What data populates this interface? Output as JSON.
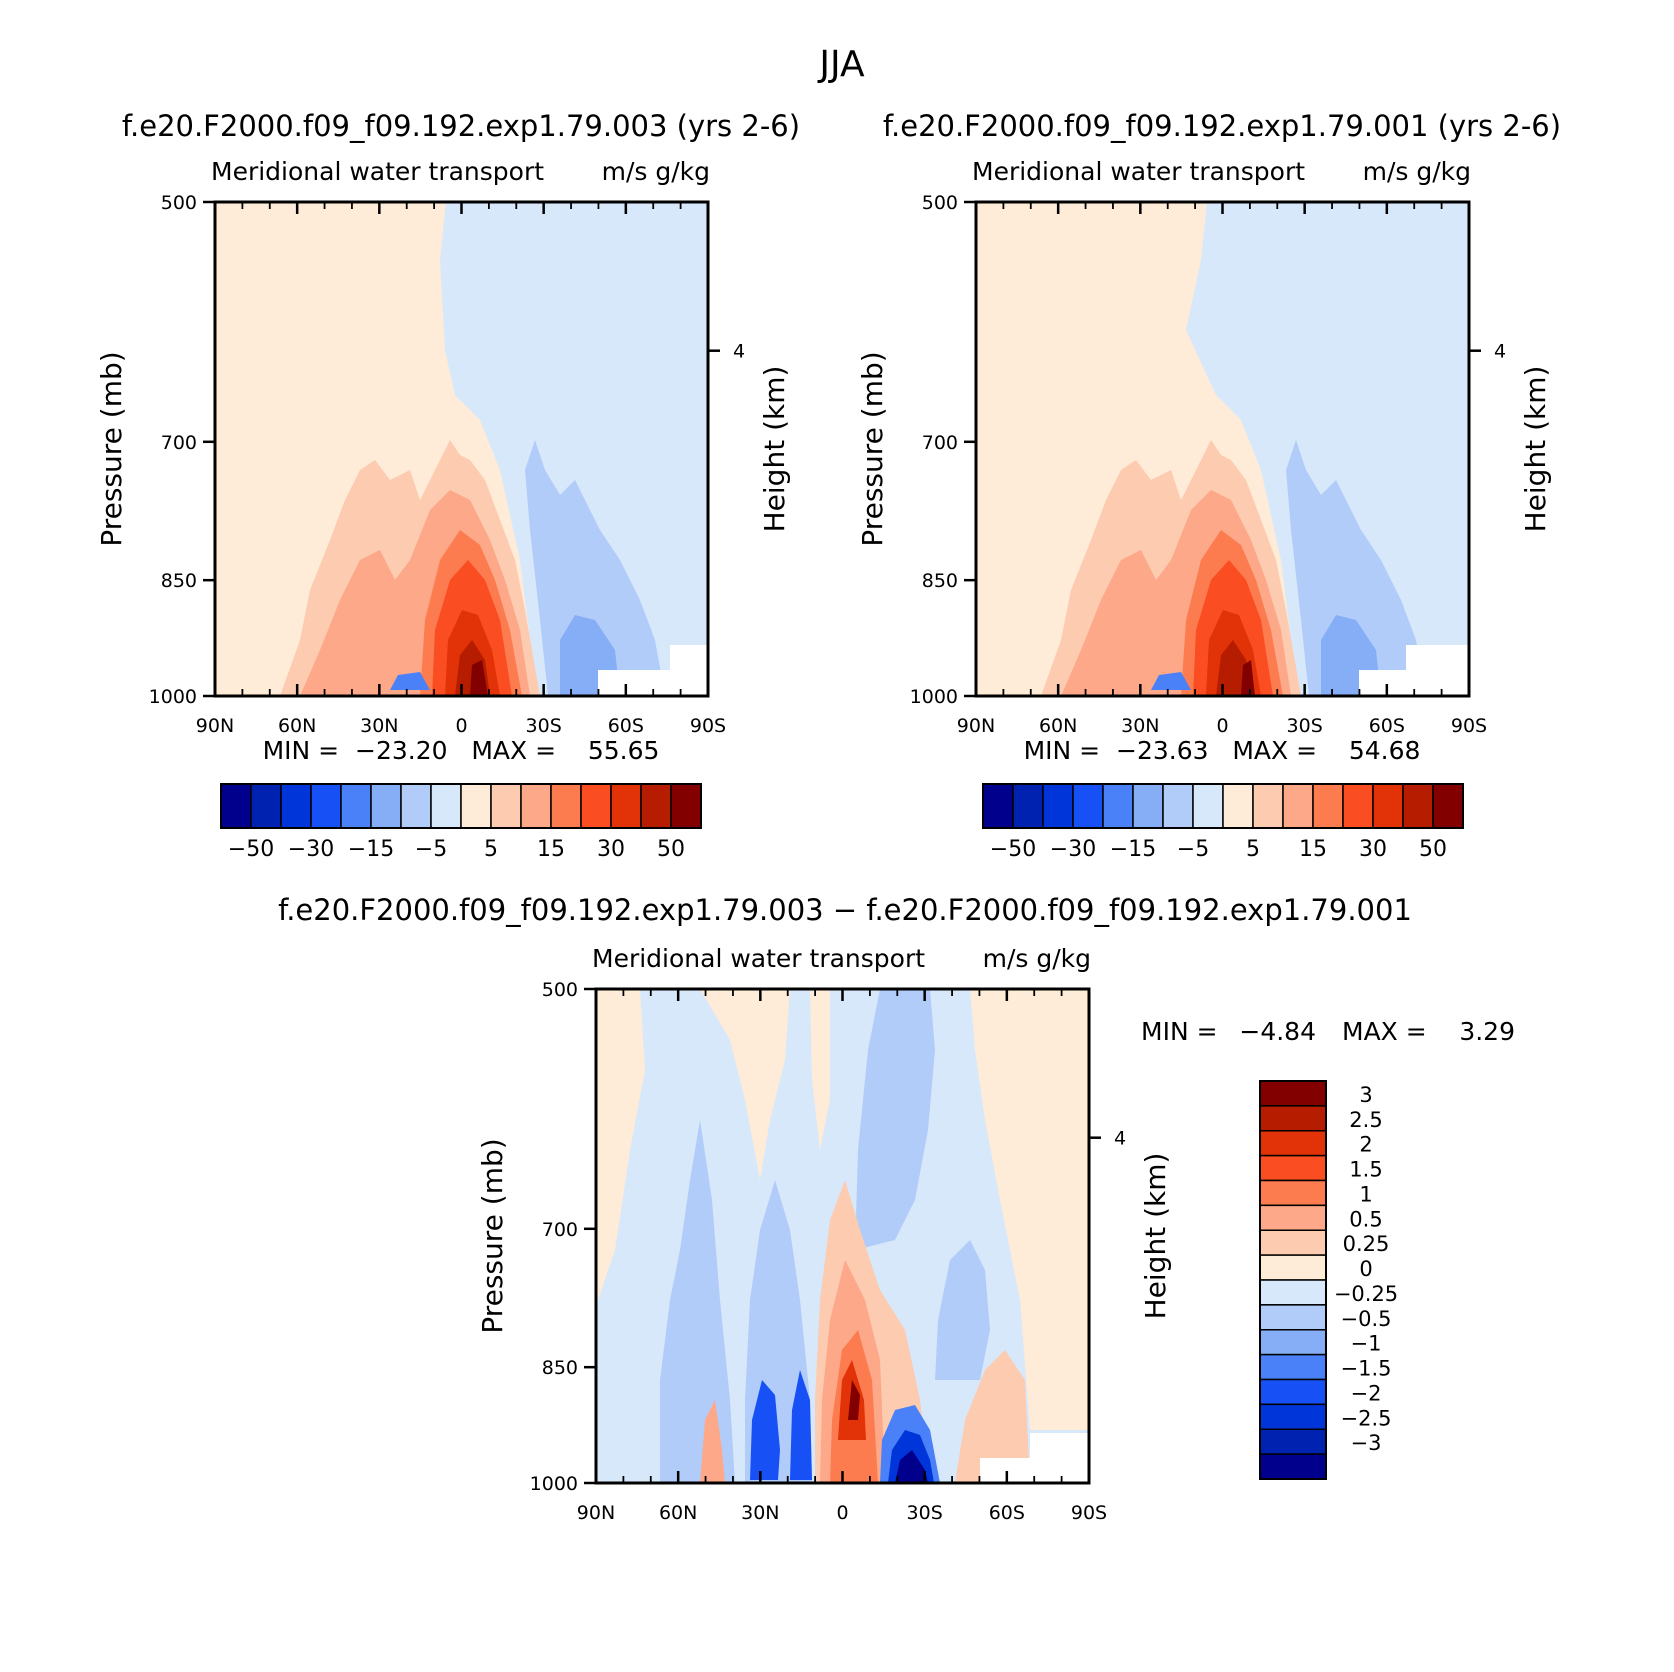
{
  "figure": {
    "title": "JJA"
  },
  "colors": {
    "scale": [
      "#00008c",
      "#0022b0",
      "#0035da",
      "#1750f4",
      "#4a80f8",
      "#86aef6",
      "#b2ccfa",
      "#d7e8fb",
      "#feebd8",
      "#fdcbb0",
      "#fca889",
      "#fc7c50",
      "#fb4d22",
      "#e13208",
      "#b51c00",
      "#820000"
    ]
  },
  "chart_data": [
    {
      "type": "heatmap",
      "id": "panel_a",
      "title": "f.e20.F2000.f09_f09.192.exp1.79.003 (yrs 2-6)",
      "subtitle_left": "Meridional water transport",
      "subtitle_right": "m/s g/kg",
      "ylabel": "Pressure (mb)",
      "ylabel_right": "Height (km)",
      "yticks": [
        "500",
        "700",
        "850",
        "1000"
      ],
      "ytick_values": [
        500,
        700,
        850,
        1000
      ],
      "height_ticks": [
        "4"
      ],
      "ylim": [
        1000,
        500
      ],
      "xticks": [
        "90N",
        "60N",
        "30N",
        "0",
        "30S",
        "60S",
        "90S"
      ],
      "xlim": [
        90,
        -90
      ],
      "stats": "MIN =  −23.20   MAX =    55.65",
      "min": -23.2,
      "max": 55.65,
      "colorbar_labels": [
        "−50",
        "−30",
        "−15",
        "−5",
        "5",
        "15",
        "30",
        "50"
      ],
      "levels": [
        -50,
        -40,
        -30,
        -20,
        -15,
        -10,
        -5,
        0,
        5,
        10,
        15,
        20,
        30,
        40,
        50
      ]
    },
    {
      "type": "heatmap",
      "id": "panel_b",
      "title": "f.e20.F2000.f09_f09.192.exp1.79.001 (yrs 2-6)",
      "subtitle_left": "Meridional water transport",
      "subtitle_right": "m/s g/kg",
      "ylabel": "Pressure (mb)",
      "ylabel_right": "Height (km)",
      "yticks": [
        "500",
        "700",
        "850",
        "1000"
      ],
      "ytick_values": [
        500,
        700,
        850,
        1000
      ],
      "height_ticks": [
        "4"
      ],
      "ylim": [
        1000,
        500
      ],
      "xticks": [
        "90N",
        "60N",
        "30N",
        "0",
        "30S",
        "60S",
        "90S"
      ],
      "xlim": [
        90,
        -90
      ],
      "stats": "MIN =  −23.63   MAX =    54.68",
      "min": -23.63,
      "max": 54.68,
      "colorbar_labels": [
        "−50",
        "−30",
        "−15",
        "−5",
        "5",
        "15",
        "30",
        "50"
      ],
      "levels": [
        -50,
        -40,
        -30,
        -20,
        -15,
        -10,
        -5,
        0,
        5,
        10,
        15,
        20,
        30,
        40,
        50
      ]
    },
    {
      "type": "heatmap",
      "id": "panel_diff",
      "title": "f.e20.F2000.f09_f09.192.exp1.79.003 − f.e20.F2000.f09_f09.192.exp1.79.001",
      "subtitle_left": "Meridional water transport",
      "subtitle_right": "m/s g/kg",
      "ylabel": "Pressure (mb)",
      "ylabel_right": "Height (km)",
      "yticks": [
        "500",
        "700",
        "850",
        "1000"
      ],
      "ytick_values": [
        500,
        700,
        850,
        1000
      ],
      "height_ticks": [
        "4"
      ],
      "ylim": [
        1000,
        500
      ],
      "xticks": [
        "90N",
        "60N",
        "30N",
        "0",
        "30S",
        "60S",
        "90S"
      ],
      "xlim": [
        90,
        -90
      ],
      "stats_min_label": "MIN =",
      "stats_min_value": "−4.84",
      "stats_max_label": "MAX =",
      "stats_max_value": "3.29",
      "min": -4.84,
      "max": 3.29,
      "colorbar_labels": [
        "3",
        "2.5",
        "2",
        "1.5",
        "1",
        "0.5",
        "0.25",
        "0",
        "−0.25",
        "−0.5",
        "−1",
        "−1.5",
        "−2",
        "−2.5",
        "−3"
      ],
      "levels": [
        3,
        2.5,
        2,
        1.5,
        1,
        0.5,
        0.25,
        0,
        -0.25,
        -0.5,
        -1,
        -1.5,
        -2,
        -2.5,
        -3
      ]
    }
  ]
}
